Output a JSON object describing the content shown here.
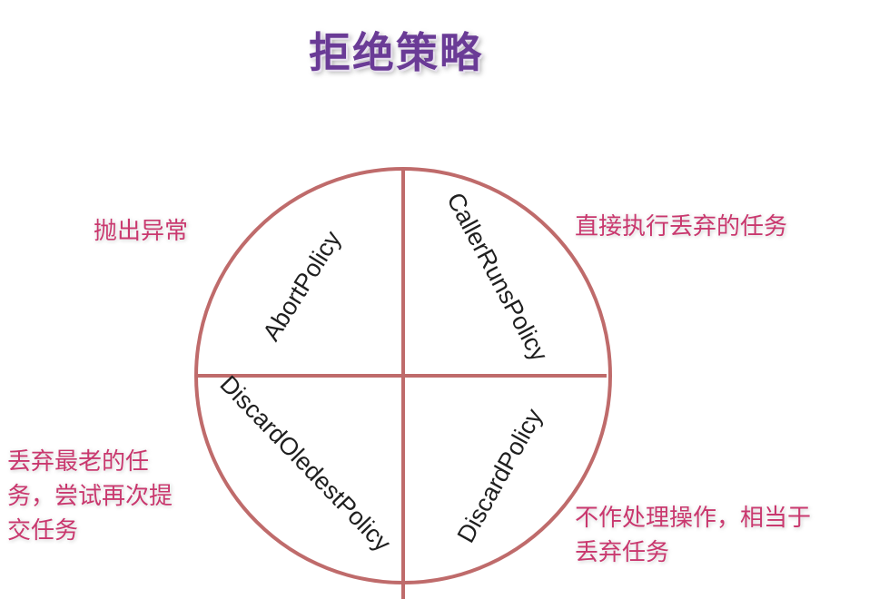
{
  "title": "拒绝策略",
  "policies": [
    {
      "name": "AbortPolicy",
      "note_lines": [
        "抛出异常"
      ]
    },
    {
      "name": "CallerRunsPolicy",
      "note_lines": [
        "直接执行丢弃的任务"
      ]
    },
    {
      "name": "DiscardOledestPolicy",
      "note_lines": [
        "丢弃最老的任",
        "务，尝试再次提",
        "交任务"
      ]
    },
    {
      "name": "DiscardPolicy",
      "note_lines": [
        "不作处理操作，相当于",
        "丢弃任务"
      ]
    }
  ],
  "colors": {
    "title": "#6a3b96",
    "note": "#c9386e",
    "circle_stroke": "#bf6b6b",
    "label": "#1f1f1f"
  }
}
